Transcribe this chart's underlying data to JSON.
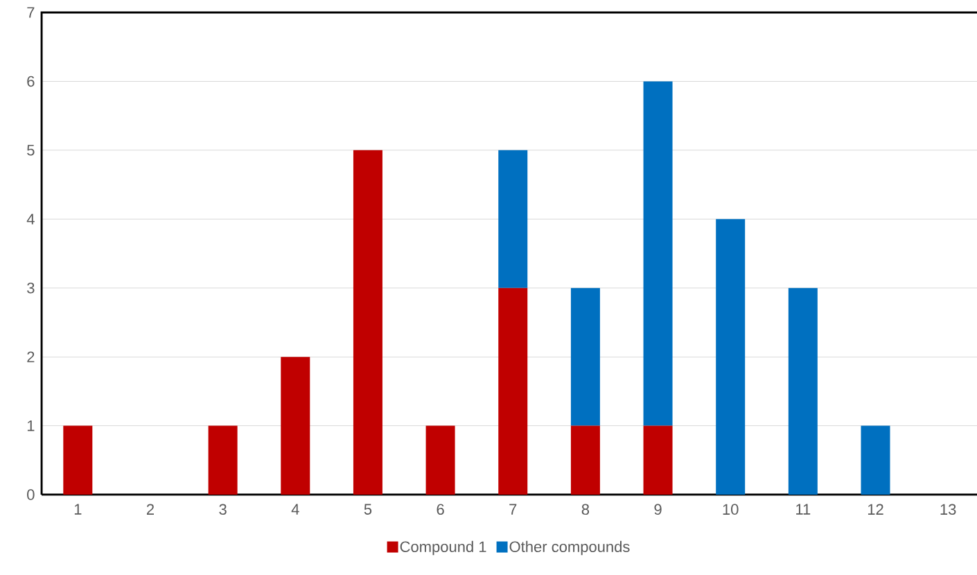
{
  "chart_data": {
    "type": "bar",
    "stacked": true,
    "categories": [
      "1",
      "2",
      "3",
      "4",
      "5",
      "6",
      "7",
      "8",
      "9",
      "10",
      "11",
      "12",
      "13"
    ],
    "series": [
      {
        "name": "Compound 1",
        "color": "#c00000",
        "values": [
          1,
          0,
          1,
          2,
          5,
          1,
          3,
          1,
          1,
          0,
          0,
          0,
          0
        ]
      },
      {
        "name": "Other compounds",
        "color": "#0070c0",
        "values": [
          0,
          0,
          0,
          0,
          0,
          0,
          2,
          2,
          5,
          4,
          3,
          1,
          0
        ]
      }
    ],
    "ylim": [
      0,
      7
    ],
    "yticks": [
      0,
      1,
      2,
      3,
      4,
      5,
      6,
      7
    ],
    "grid": "y",
    "legend": "bottom"
  }
}
